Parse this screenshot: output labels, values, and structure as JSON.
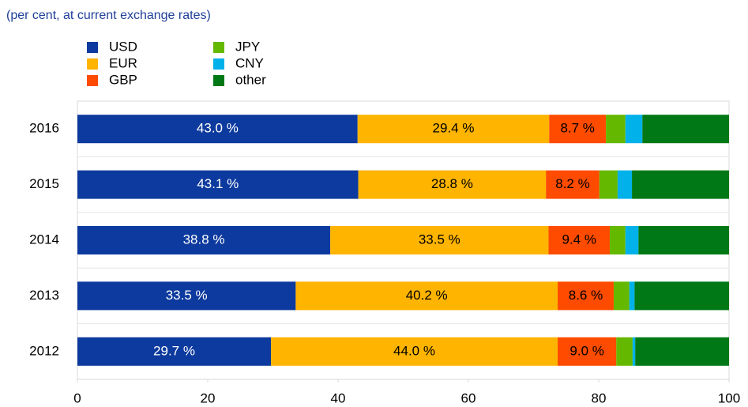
{
  "chart_data": {
    "type": "stacked_barh",
    "subtitle": "(per cent, at current exchange rates)",
    "categories": [
      "2016",
      "2015",
      "2014",
      "2013",
      "2012"
    ],
    "series": [
      {
        "name": "USD",
        "color": "#0d3a9e",
        "values": [
          43.0,
          43.1,
          38.8,
          33.5,
          29.7
        ],
        "value_labels": [
          "43.0 %",
          "43.1 %",
          "38.8 %",
          "33.5 %",
          "29.7 %"
        ]
      },
      {
        "name": "EUR",
        "color": "#ffb400",
        "values": [
          29.4,
          28.8,
          33.5,
          40.2,
          44.0
        ],
        "value_labels": [
          "29.4 %",
          "28.8 %",
          "33.5 %",
          "40.2 %",
          "44.0 %"
        ]
      },
      {
        "name": "GBP",
        "color": "#ff4b00",
        "values": [
          8.7,
          8.2,
          9.4,
          8.6,
          9.0
        ],
        "value_labels": [
          "8.7 %",
          "8.2 %",
          "9.4 %",
          "8.6 %",
          "9.0 %"
        ]
      },
      {
        "name": "JPY",
        "color": "#65b800",
        "values": [
          3.0,
          2.8,
          2.4,
          2.4,
          2.5
        ]
      },
      {
        "name": "CNY",
        "color": "#00b1ea",
        "values": [
          2.6,
          2.2,
          2.0,
          0.8,
          0.4
        ]
      },
      {
        "name": "other",
        "color": "#007816",
        "values": [
          13.3,
          14.9,
          13.9,
          14.5,
          14.4
        ]
      }
    ],
    "xlim": [
      0,
      100
    ],
    "xticks": [
      0,
      20,
      40,
      60,
      80,
      100
    ]
  }
}
